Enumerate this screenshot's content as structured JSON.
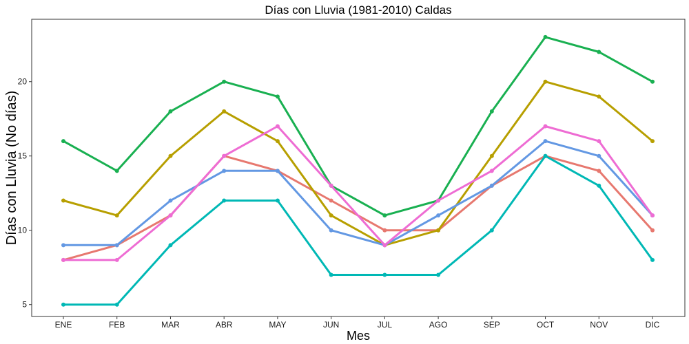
{
  "chart_data": {
    "type": "line",
    "title": "Días con Lluvia (1981-2010)  Caldas",
    "xlabel": "Mes",
    "ylabel": "Días con Lluvia (No días)",
    "categories": [
      "ENE",
      "FEB",
      "MAR",
      "ABR",
      "MAY",
      "JUN",
      "JUL",
      "AGO",
      "SEP",
      "OCT",
      "NOV",
      "DIC"
    ],
    "ylim": [
      4.2,
      24.2
    ],
    "yticks": [
      5,
      10,
      15,
      20
    ],
    "grid": false,
    "legend": "none",
    "series": [
      {
        "color": "#E7786F",
        "values": [
          8,
          9,
          11,
          15,
          14,
          12,
          10,
          10,
          13,
          15,
          14,
          10
        ]
      },
      {
        "color": "#B79F00",
        "values": [
          12,
          11,
          15,
          18,
          16,
          11,
          9,
          10,
          15,
          20,
          19,
          16
        ]
      },
      {
        "color": "#19B051",
        "values": [
          16,
          14,
          18,
          20,
          19,
          13,
          11,
          12,
          18,
          23,
          22,
          20
        ]
      },
      {
        "color": "#00B8B5",
        "values": [
          5,
          5,
          9,
          12,
          12,
          7,
          7,
          7,
          10,
          15,
          13,
          8
        ]
      },
      {
        "color": "#6398E3",
        "values": [
          9,
          9,
          12,
          14,
          14,
          10,
          9,
          11,
          13,
          16,
          15,
          11
        ]
      },
      {
        "color": "#EE6CD3",
        "values": [
          8,
          8,
          11,
          15,
          17,
          13,
          9,
          12,
          14,
          17,
          16,
          11
        ]
      }
    ]
  }
}
